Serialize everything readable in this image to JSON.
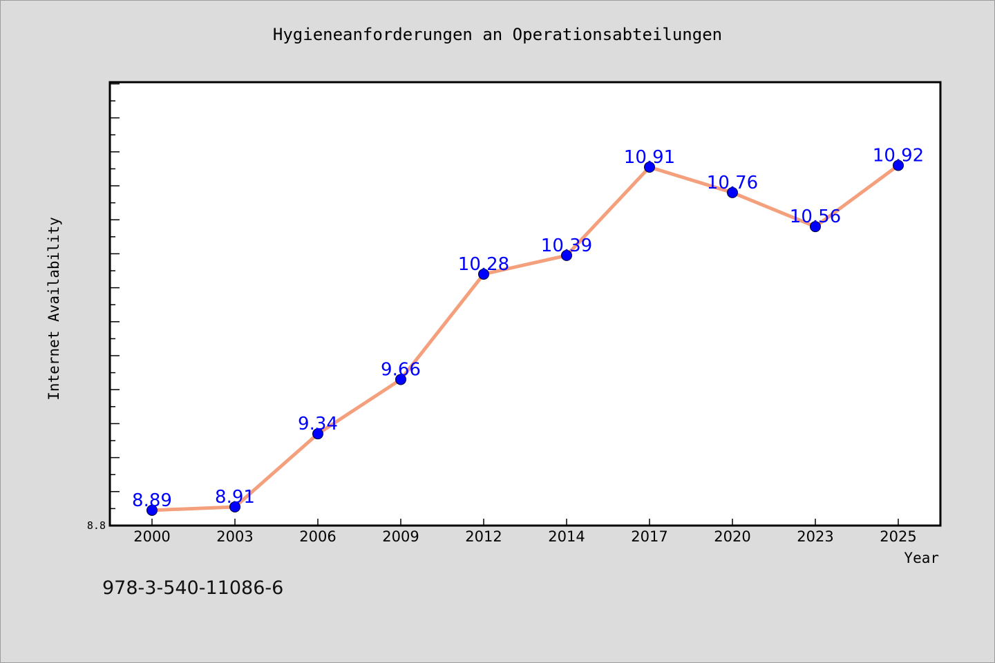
{
  "chart_data": {
    "type": "line",
    "title": "Hygieneanforderungen an Operationsabteilungen",
    "xlabel": "Year",
    "ylabel": "Internet Availability",
    "categories": [
      "2000",
      "2003",
      "2006",
      "2009",
      "2012",
      "2014",
      "2017",
      "2020",
      "2023",
      "2025"
    ],
    "series": [
      {
        "values": [
          8.89,
          8.91,
          9.34,
          9.66,
          10.28,
          10.39,
          10.91,
          10.76,
          10.56,
          10.92
        ],
        "data_labels": [
          "8.89",
          "8.91",
          "9.34",
          "9.66",
          "10.28",
          "10.39",
          "10.91",
          "10.76",
          "10.56",
          "10.92"
        ],
        "line_color": "#f4a07c",
        "marker_color": "#0000ff"
      }
    ],
    "ylim": [
      8.8,
      11.41
    ],
    "yticks_labeled": [
      "8.8"
    ],
    "grid": false,
    "legend": "none"
  },
  "footer": {
    "isbn": "978-3-540-11086-6"
  },
  "colors": {
    "background": "#dcdcdc",
    "plot_background": "#ffffff",
    "line": "#f4a07c",
    "marker": "#0000ff",
    "data_label": "#0000ff"
  }
}
